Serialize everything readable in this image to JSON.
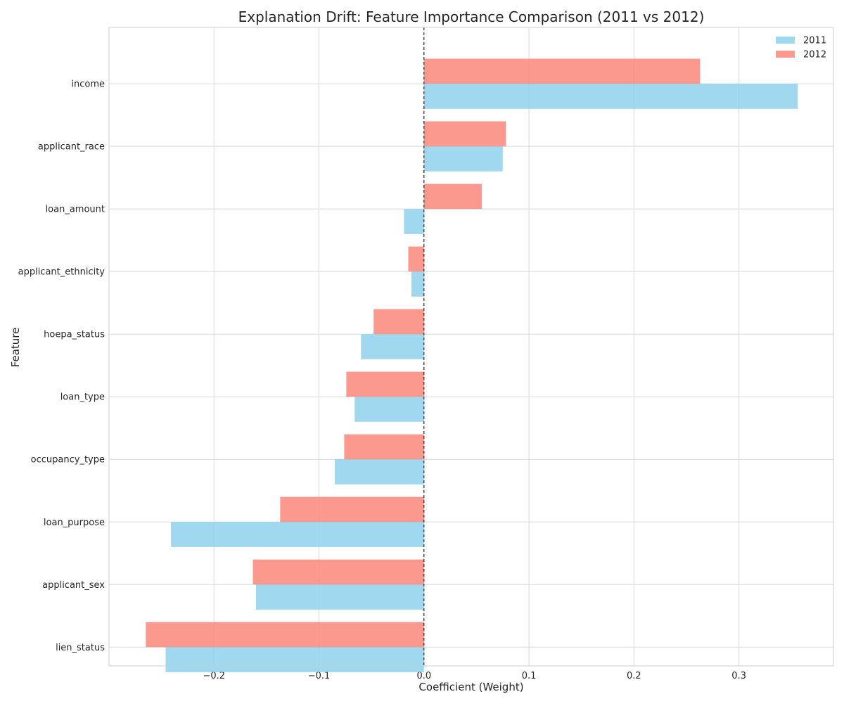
{
  "chart_data": {
    "type": "bar",
    "orientation": "horizontal",
    "title": "Explanation Drift: Feature Importance Comparison (2011 vs 2012)",
    "xlabel": "Coefficient (Weight)",
    "ylabel": "Feature",
    "xlim": [
      -0.3,
      0.39
    ],
    "xticks": [
      -0.2,
      -0.1,
      0.0,
      0.1,
      0.2,
      0.3
    ],
    "xtick_labels": [
      "−0.2",
      "−0.1",
      "0.0",
      "0.1",
      "0.2",
      "0.3"
    ],
    "categories": [
      "income",
      "applicant_race",
      "loan_amount",
      "applicant_ethnicity",
      "hoepa_status",
      "loan_type",
      "occupancy_type",
      "loan_purpose",
      "applicant_sex",
      "lien_status"
    ],
    "series": [
      {
        "name": "2011",
        "color": "#87CEEB",
        "values": [
          0.356,
          0.075,
          -0.019,
          -0.012,
          -0.06,
          -0.066,
          -0.085,
          -0.241,
          -0.16,
          -0.246
        ]
      },
      {
        "name": "2012",
        "color": "#FA8072",
        "values": [
          0.263,
          0.078,
          0.055,
          -0.015,
          -0.048,
          -0.074,
          -0.076,
          -0.137,
          -0.163,
          -0.265
        ]
      }
    ],
    "grid": true,
    "zero_line": "dashed",
    "legend_placement": "top-right"
  }
}
